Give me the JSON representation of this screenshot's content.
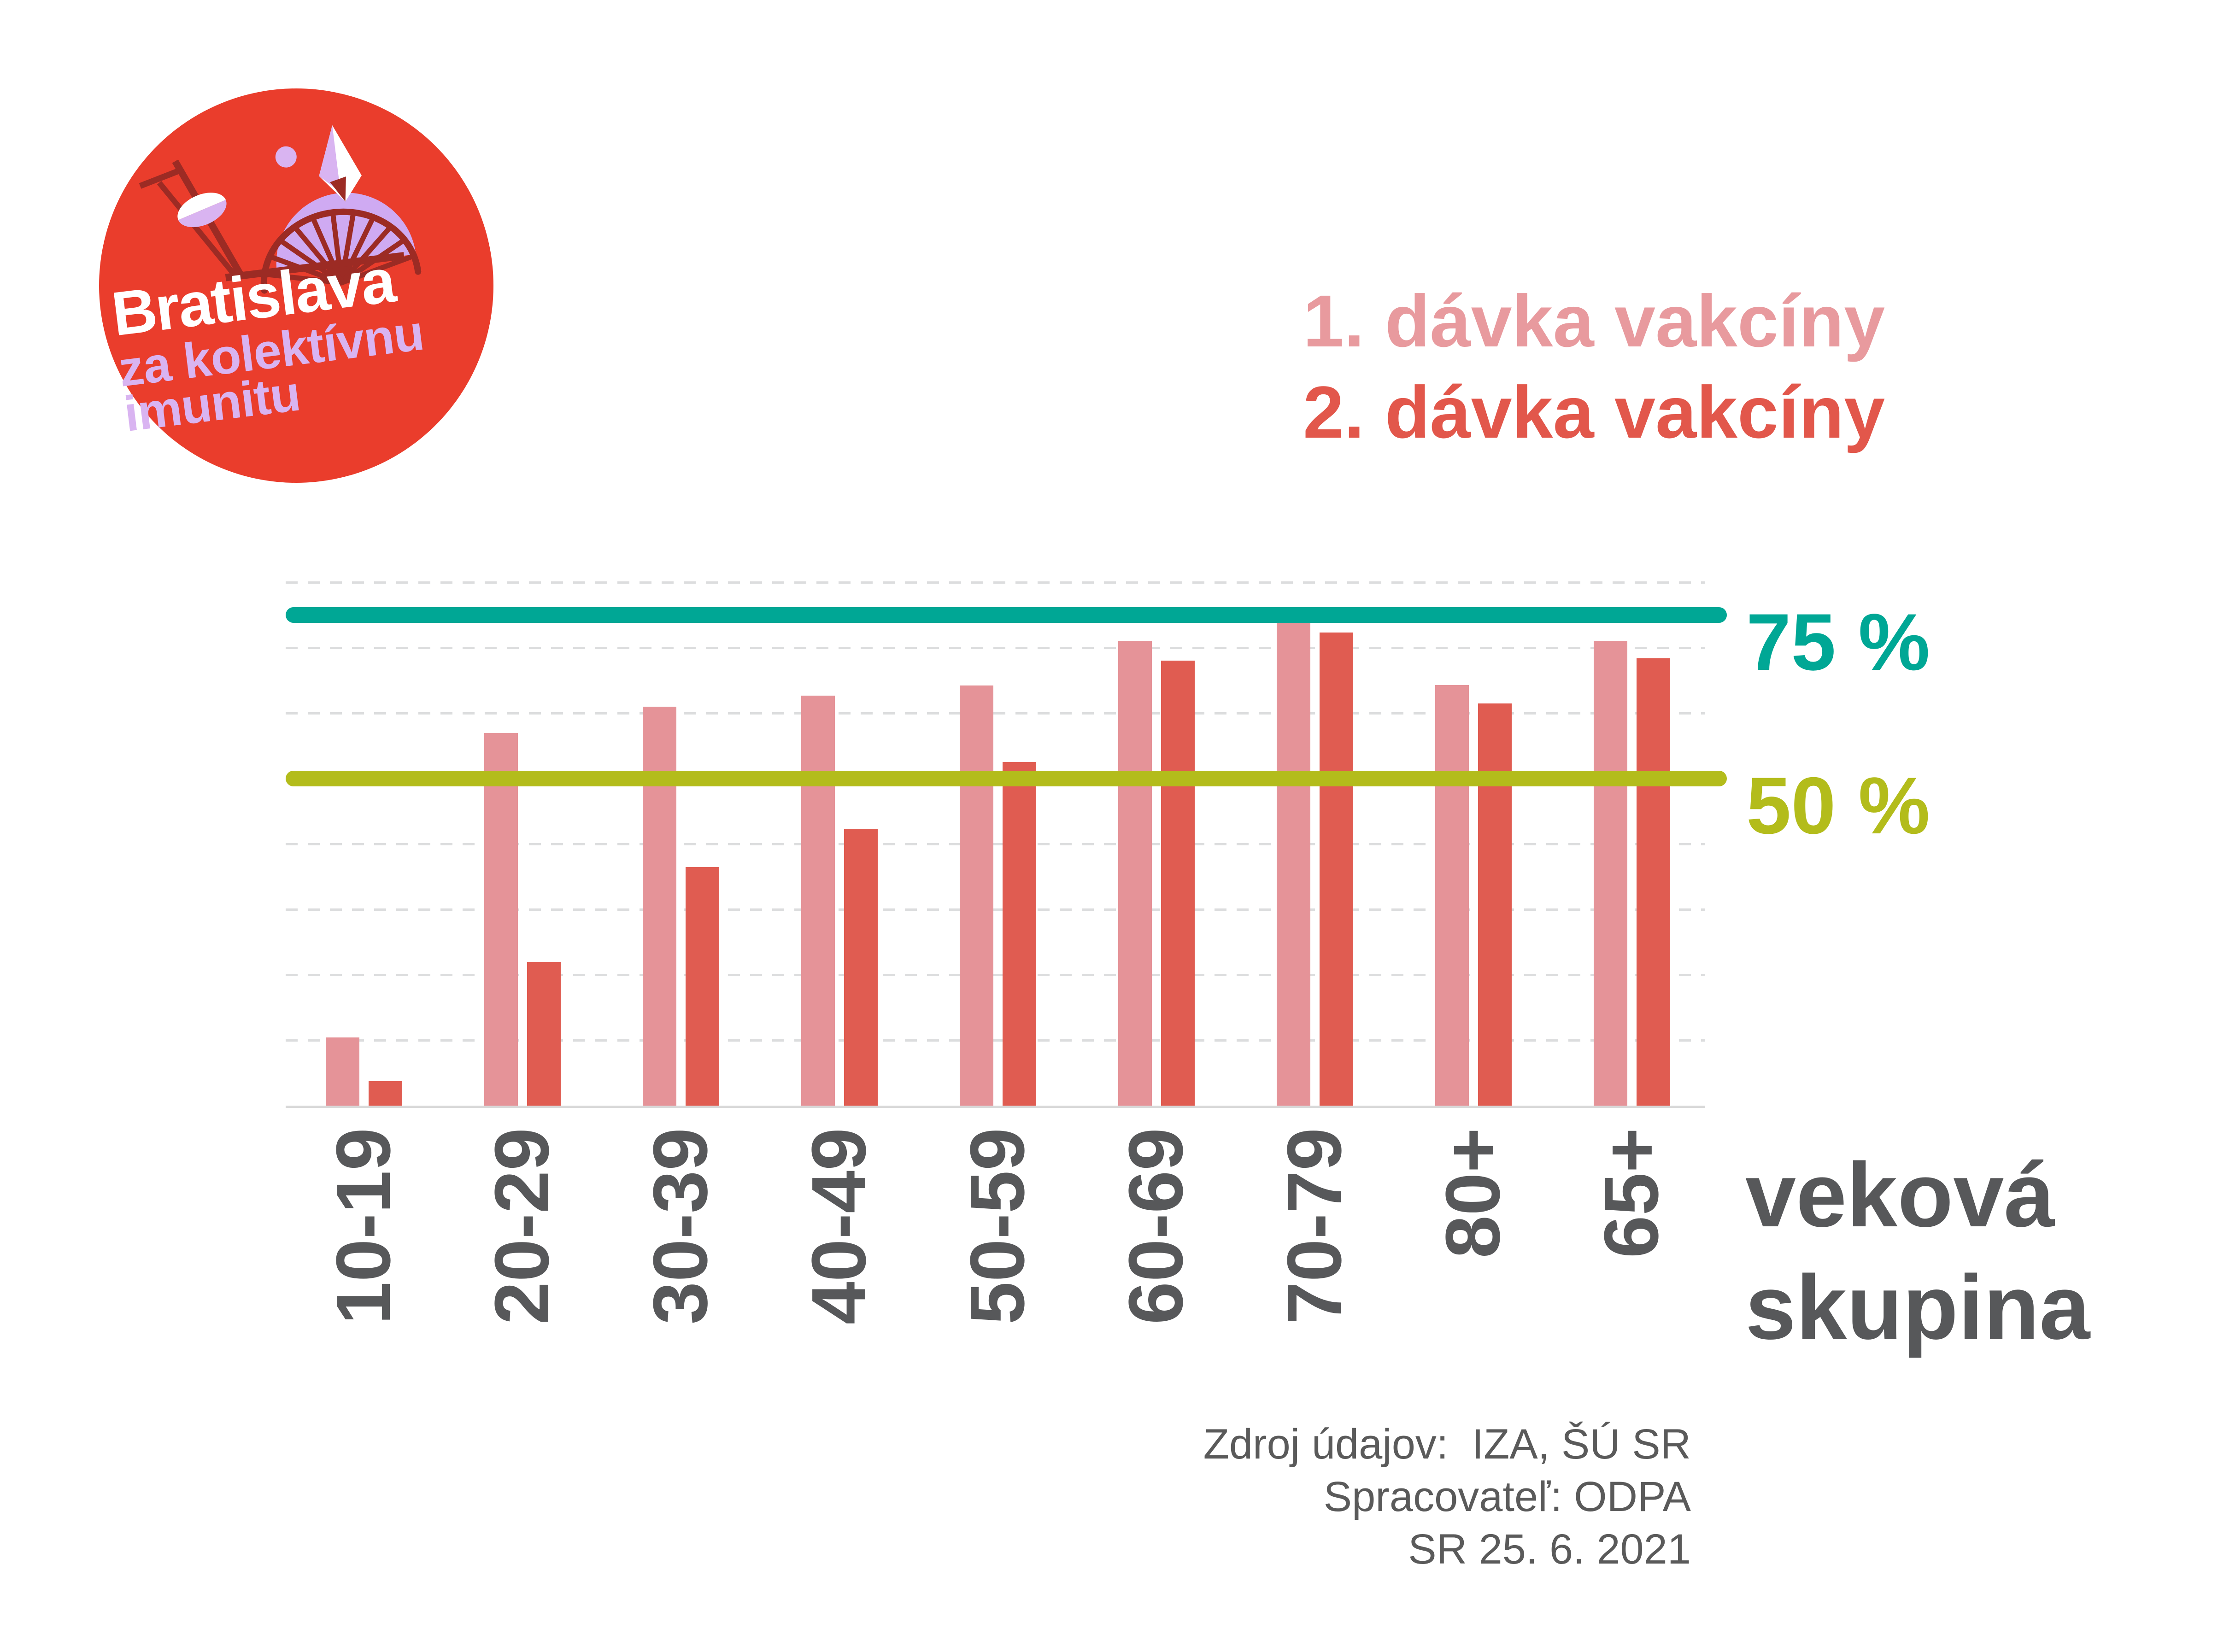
{
  "logo": {
    "title": "Bratislava",
    "subtitle_line1": "za kolektívnu",
    "subtitle_line2": "imunitu",
    "icons": [
      "sun-icon",
      "parasol-icon",
      "ufo-bridge-icon",
      "sail-icon"
    ],
    "colors": {
      "circle": "#ea3d2c",
      "dark": "#9c2b24",
      "lavender": "#d9b4f1",
      "lavender2": "#cfaaf2",
      "white": "#ffffff"
    }
  },
  "legend": [
    {
      "label": "1. dávka vakcíny",
      "color": "#e89a9e"
    },
    {
      "label": "2. dávka vakcíny",
      "color": "#e2574b"
    }
  ],
  "chart_data": {
    "type": "bar",
    "title": "",
    "categories": [
      "10-19",
      "20-29",
      "30-39",
      "40-49",
      "50-59",
      "60-69",
      "70-79",
      "80+",
      "65+"
    ],
    "series": [
      {
        "name": "1. dávka vakcíny",
        "color": "#e59398",
        "values": [
          10.4,
          57.0,
          61.0,
          62.7,
          64.2,
          71.0,
          74.0,
          64.3,
          71.0
        ]
      },
      {
        "name": "2. dávka vakcíny",
        "color": "#e05c51",
        "values": [
          3.7,
          22.0,
          36.5,
          42.3,
          52.5,
          68.0,
          72.3,
          61.5,
          68.4
        ]
      }
    ],
    "reference_lines": [
      {
        "label": "75 %",
        "value": 75,
        "color": "#00a795"
      },
      {
        "label": "50 %",
        "value": 50,
        "color": "#b3bc1b"
      }
    ],
    "xlabel": "veková skupina",
    "ylabel": "",
    "unit": "%",
    "ylim": [
      0,
      80
    ],
    "grid_step": 10,
    "grid": "dashed horizontal, no y tick labels",
    "legend_position": "top-right"
  },
  "x_axis_title": {
    "line1": "veková",
    "line2": "skupina"
  },
  "source": {
    "lines": [
      "Zdroj údajov:  IZA, ŠÚ SR",
      "Spracovateľ: ODPA",
      "SR 25. 6. 2021"
    ]
  }
}
